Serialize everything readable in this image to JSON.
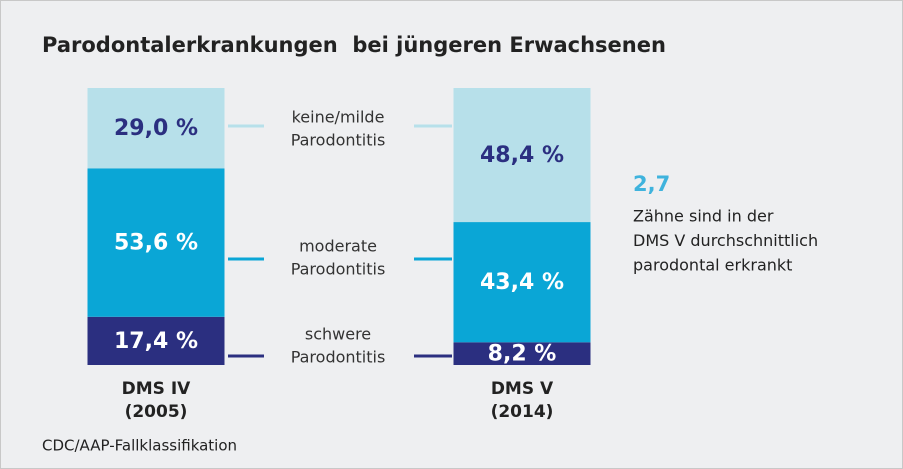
{
  "chart_data": {
    "type": "stacked_bar",
    "title": "Parodontalerkrankungen  bei jüngeren Erwachsenen",
    "categories": [
      "DMS IV",
      "DMS V"
    ],
    "category_sublabels": [
      "(2005)",
      "(2014)"
    ],
    "ylim": [
      0,
      100
    ],
    "series": [
      {
        "name": "schwere Parodontitis",
        "color": "#2b2f80",
        "label_color": "#ffffff",
        "values": [
          17.4,
          8.2
        ],
        "value_labels": [
          "17,4 %",
          "8,2 %"
        ]
      },
      {
        "name": "moderate Parodontitis",
        "color": "#0aa6d6",
        "label_color": "#ffffff",
        "values": [
          53.6,
          43.4
        ],
        "value_labels": [
          "53,6 %",
          "43,4 %"
        ]
      },
      {
        "name": "keine/milde Parodontitis",
        "color": "#b7e0ea",
        "label_color": "#2b2f80",
        "values": [
          29.0,
          48.4
        ],
        "value_labels": [
          "29,0 %",
          "48,4 %"
        ]
      }
    ],
    "annotation": {
      "highlight": "2,7",
      "lines": [
        "Zähne sind in der",
        "DMS V durchschnittlich",
        "parodontal erkrankt"
      ]
    },
    "footnote": "CDC/AAP-Fallklassifikation"
  }
}
